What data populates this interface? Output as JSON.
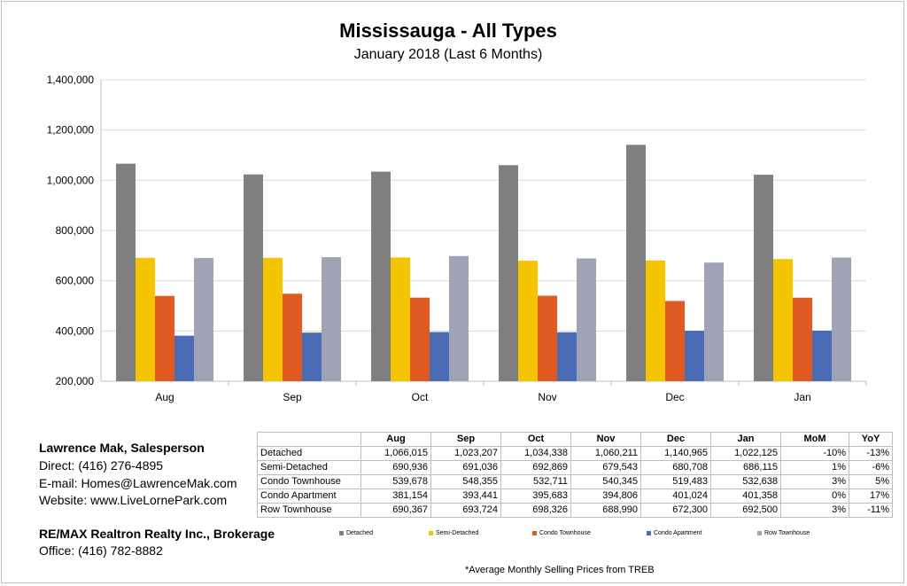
{
  "header": {
    "title": "Mississauga - All Types",
    "subtitle": "January 2018 (Last 6 Months)"
  },
  "contact": {
    "name": "Lawrence Mak, Salesperson",
    "direct": "Direct:  (416) 276-4895",
    "email": "E-mail:  Homes@LawrenceMak.com",
    "website": "Website: www.LiveLornePark.com",
    "brokerage": "RE/MAX Realtron Realty Inc., Brokerage",
    "office": "Office: (416) 782-8882"
  },
  "footnote": "*Average Monthly Selling Prices  from TREB",
  "chart_data": {
    "type": "bar",
    "title": "Mississauga - All Types",
    "subtitle": "January 2018 (Last 6 Months)",
    "categories": [
      "Aug",
      "Sep",
      "Oct",
      "Nov",
      "Dec",
      "Jan"
    ],
    "ylim": [
      200000,
      1400000
    ],
    "yticks": [
      200000,
      400000,
      600000,
      800000,
      1000000,
      1200000,
      1400000
    ],
    "ytick_labels": [
      "200,000",
      "400,000",
      "600,000",
      "800,000",
      "1,000,000",
      "1,200,000",
      "1,400,000"
    ],
    "grid": true,
    "legend_position": "bottom-right",
    "series": [
      {
        "name": "Detached",
        "color": "#7f7f7f",
        "values": [
          1066015,
          1023207,
          1034338,
          1060211,
          1140965,
          1022125
        ]
      },
      {
        "name": "Semi-Detached",
        "color": "#f5c400",
        "values": [
          690936,
          691036,
          692869,
          679543,
          680708,
          686115
        ]
      },
      {
        "name": "Condo Townhouse",
        "color": "#e05a22",
        "values": [
          539678,
          548355,
          532711,
          540345,
          519483,
          532638
        ]
      },
      {
        "name": "Condo Apartment",
        "color": "#4a6cb5",
        "values": [
          381154,
          393441,
          395683,
          394806,
          401024,
          401358
        ]
      },
      {
        "name": "Row Townhouse",
        "color": "#a0a2b5",
        "values": [
          690367,
          693724,
          698326,
          688990,
          672300,
          692500
        ]
      }
    ]
  },
  "table": {
    "headers": [
      "",
      "Aug",
      "Sep",
      "Oct",
      "Nov",
      "Dec",
      "Jan",
      "MoM",
      "YoY"
    ],
    "rows": [
      [
        "Detached",
        "1,066,015",
        "1,023,207",
        "1,034,338",
        "1,060,211",
        "1,140,965",
        "1,022,125",
        "-10%",
        "-13%"
      ],
      [
        "Semi-Detached",
        "690,936",
        "691,036",
        "692,869",
        "679,543",
        "680,708",
        "686,115",
        "1%",
        "-6%"
      ],
      [
        "Condo Townhouse",
        "539,678",
        "548,355",
        "532,711",
        "540,345",
        "519,483",
        "532,638",
        "3%",
        "5%"
      ],
      [
        "Condo Apartment",
        "381,154",
        "393,441",
        "395,683",
        "394,806",
        "401,024",
        "401,358",
        "0%",
        "17%"
      ],
      [
        "Row Townhouse",
        "690,367",
        "693,724",
        "698,326",
        "688,990",
        "672,300",
        "692,500",
        "3%",
        "-11%"
      ]
    ]
  }
}
